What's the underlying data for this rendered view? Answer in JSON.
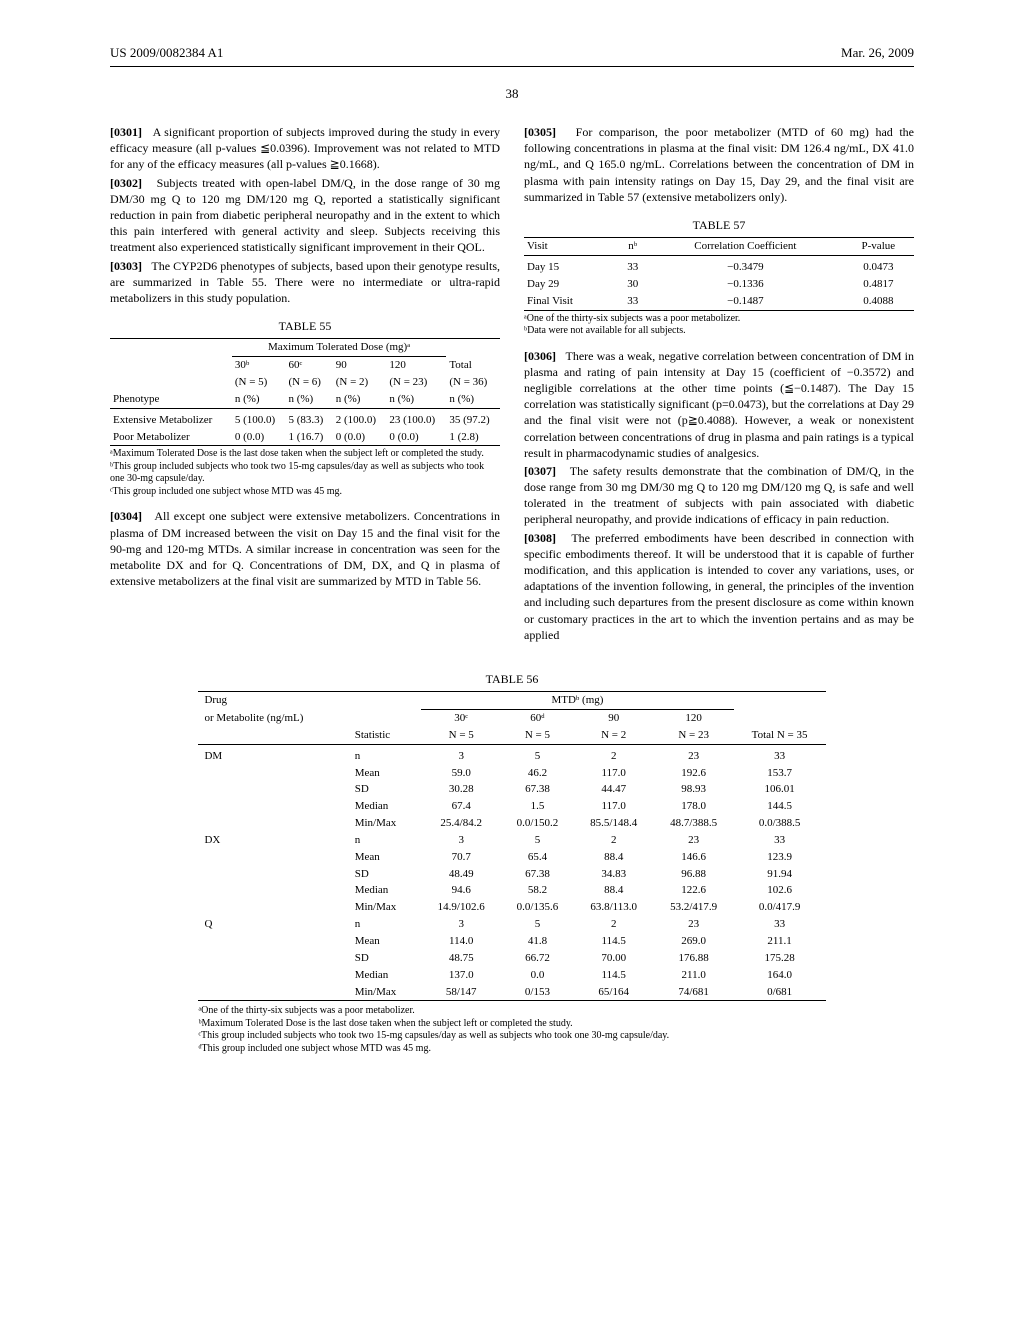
{
  "header": {
    "pub": "US 2009/0082384 A1",
    "date": "Mar. 26, 2009"
  },
  "page_num": "38",
  "p301": {
    "num": "[0301]",
    "text": "A significant proportion of subjects improved during the study in every efficacy measure (all p-values ≦0.0396). Improvement was not related to MTD for any of the efficacy measures (all p-values ≧0.1668)."
  },
  "p302": {
    "num": "[0302]",
    "text": "Subjects treated with open-label DM/Q, in the dose range of 30 mg DM/30 mg Q to 120 mg DM/120 mg Q, reported a statistically significant reduction in pain from diabetic peripheral neuropathy and in the extent to which this pain interfered with general activity and sleep. Subjects receiving this treatment also experienced statistically significant improvement in their QOL."
  },
  "p303": {
    "num": "[0303]",
    "text": "The CYP2D6 phenotypes of subjects, based upon their genotype results, are summarized in Table 55. There were no intermediate or ultra-rapid metabolizers in this study population."
  },
  "t55": {
    "title": "TABLE 55",
    "spanner": "Maximum Tolerated Dose (mg)ᵃ",
    "cols": [
      {
        "h1": "30ᵇ",
        "h2": "(N = 5)",
        "h3": "n (%)"
      },
      {
        "h1": "60ᶜ",
        "h2": "(N = 6)",
        "h3": "n (%)"
      },
      {
        "h1": "90",
        "h2": "(N = 2)",
        "h3": "n (%)"
      },
      {
        "h1": "120",
        "h2": "(N = 23)",
        "h3": "n (%)"
      },
      {
        "h1": "Total",
        "h2": "(N = 36)",
        "h3": "n (%)"
      }
    ],
    "rowlabel": "Phenotype",
    "rows": [
      {
        "label": "Extensive Metabolizer",
        "v": [
          "5 (100.0)",
          "5 (83.3)",
          "2 (100.0)",
          "23 (100.0)",
          "35 (97.2)"
        ]
      },
      {
        "label": "Poor Metabolizer",
        "v": [
          "0 (0.0)",
          "1 (16.7)",
          "0 (0.0)",
          "0 (0.0)",
          "1 (2.8)"
        ]
      }
    ],
    "fn": [
      "ᵃMaximum Tolerated Dose is the last dose taken when the subject left or completed the study.",
      "ᵇThis group included subjects who took two 15-mg capsules/day as well as subjects who took one 30-mg capsule/day.",
      "ᶜThis group included one subject whose MTD was 45 mg."
    ]
  },
  "p304": {
    "num": "[0304]",
    "text": "All except one subject were extensive metabolizers. Concentrations in plasma of DM increased between the visit on Day 15 and the final visit for the 90-mg and 120-mg MTDs. A similar increase in concentration was seen for the metabolite DX and for Q. Concentrations of DM, DX, and Q in plasma of extensive metabolizers at the final visit are summarized by MTD in Table 56."
  },
  "p305": {
    "num": "[0305]",
    "text": "For comparison, the poor metabolizer (MTD of 60 mg) had the following concentrations in plasma at the final visit: DM 126.4 ng/mL, DX 41.0 ng/mL, and Q 165.0 ng/mL. Correlations between the concentration of DM in plasma with pain intensity ratings on Day 15, Day 29, and the final visit are summarized in Table 57 (extensive metabolizers only)."
  },
  "t57": {
    "title": "TABLE 57",
    "cols": [
      "Visit",
      "nᵇ",
      "Correlation Coefficient",
      "P-value"
    ],
    "rows": [
      [
        "Day 15",
        "33",
        "−0.3479",
        "0.0473"
      ],
      [
        "Day 29",
        "30",
        "−0.1336",
        "0.4817"
      ],
      [
        "Final Visit",
        "33",
        "−0.1487",
        "0.4088"
      ]
    ],
    "fn": [
      "ᵃOne of the thirty-six subjects was a poor metabolizer.",
      "ᵇData were not available for all subjects."
    ]
  },
  "p306": {
    "num": "[0306]",
    "text": "There was a weak, negative correlation between concentration of DM in plasma and rating of pain intensity at Day 15 (coefficient of −0.3572) and negligible correlations at the other time points (≦−0.1487). The Day 15 correlation was statistically significant (p=0.0473), but the correlations at Day 29 and the final visit were not (p≧0.4088). However, a weak or nonexistent correlation between concentrations of drug in plasma and pain ratings is a typical result in pharmacodynamic studies of analgesics."
  },
  "p307": {
    "num": "[0307]",
    "text": "The safety results demonstrate that the combination of DM/Q, in the dose range from 30 mg DM/30 mg Q to 120 mg DM/120 mg Q, is safe and well tolerated in the treatment of subjects with pain associated with diabetic peripheral neuropathy, and provide indications of efficacy in pain reduction."
  },
  "p308": {
    "num": "[0308]",
    "text": "The preferred embodiments have been described in connection with specific embodiments thereof. It will be understood that it is capable of further modification, and this application is intended to cover any variations, uses, or adaptations of the invention following, in general, the principles of the invention and including such departures from the present disclosure as come within known or customary practices in the art to which the invention pertains and as may be applied"
  },
  "t56": {
    "title": "TABLE 56",
    "header": {
      "drug": "Drug",
      "spanner": "MTDᵇ (mg)",
      "sub1": "or Metabolite (ng/mL)",
      "sub2": "Statistic",
      "cols": [
        {
          "h1": "30ᶜ",
          "h2": "N = 5"
        },
        {
          "h1": "60ᵈ",
          "h2": "N = 5"
        },
        {
          "h1": "90",
          "h2": "N = 2"
        },
        {
          "h1": "120",
          "h2": "N = 23"
        }
      ],
      "total": "Total N = 35"
    },
    "drugs": [
      {
        "name": "DM",
        "rows": [
          [
            "n",
            "3",
            "5",
            "2",
            "23",
            "33"
          ],
          [
            "Mean",
            "59.0",
            "46.2",
            "117.0",
            "192.6",
            "153.7"
          ],
          [
            "SD",
            "30.28",
            "67.38",
            "44.47",
            "98.93",
            "106.01"
          ],
          [
            "Median",
            "67.4",
            "1.5",
            "117.0",
            "178.0",
            "144.5"
          ],
          [
            "Min/Max",
            "25.4/84.2",
            "0.0/150.2",
            "85.5/148.4",
            "48.7/388.5",
            "0.0/388.5"
          ]
        ]
      },
      {
        "name": "DX",
        "rows": [
          [
            "n",
            "3",
            "5",
            "2",
            "23",
            "33"
          ],
          [
            "Mean",
            "70.7",
            "65.4",
            "88.4",
            "146.6",
            "123.9"
          ],
          [
            "SD",
            "48.49",
            "67.38",
            "34.83",
            "96.88",
            "91.94"
          ],
          [
            "Median",
            "94.6",
            "58.2",
            "88.4",
            "122.6",
            "102.6"
          ],
          [
            "Min/Max",
            "14.9/102.6",
            "0.0/135.6",
            "63.8/113.0",
            "53.2/417.9",
            "0.0/417.9"
          ]
        ]
      },
      {
        "name": "Q",
        "rows": [
          [
            "n",
            "3",
            "5",
            "2",
            "23",
            "33"
          ],
          [
            "Mean",
            "114.0",
            "41.8",
            "114.5",
            "269.0",
            "211.1"
          ],
          [
            "SD",
            "48.75",
            "66.72",
            "70.00",
            "176.88",
            "175.28"
          ],
          [
            "Median",
            "137.0",
            "0.0",
            "114.5",
            "211.0",
            "164.0"
          ],
          [
            "Min/Max",
            "58/147",
            "0/153",
            "65/164",
            "74/681",
            "0/681"
          ]
        ]
      }
    ],
    "fn": [
      "ᵃOne of the thirty-six subjects was a poor metabolizer.",
      "ᵇMaximum Tolerated Dose is the last dose taken when the subject left or completed the study.",
      "ᶜThis group included subjects who took two 15-mg capsules/day as well as subjects who took one 30-mg capsule/day.",
      "ᵈThis group included one subject whose MTD was 45 mg."
    ]
  }
}
